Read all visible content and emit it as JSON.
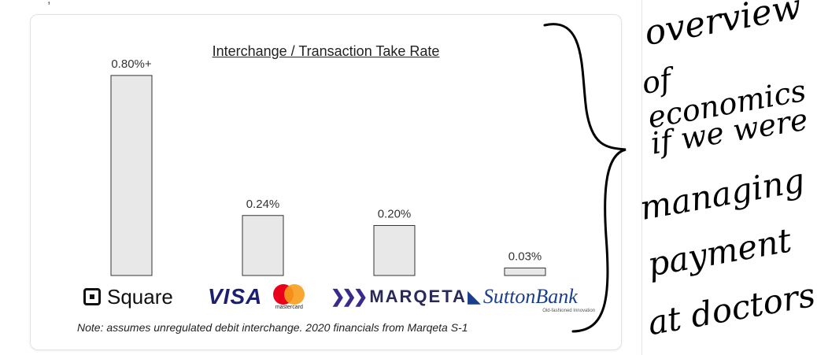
{
  "top_fragment": ",",
  "chart_data": {
    "type": "bar",
    "title": "Interchange / Transaction Take Rate",
    "categories": [
      "Square",
      "Visa / Mastercard",
      "Marqeta",
      "Sutton Bank"
    ],
    "values": [
      0.8,
      0.24,
      0.2,
      0.03
    ],
    "data_labels": [
      "0.80%+",
      "0.24%",
      "0.20%",
      "0.03%"
    ],
    "ylim": [
      0,
      0.85
    ],
    "grid": false,
    "bar_color": "#e8e8e8",
    "bar_stroke": "#333333"
  },
  "logos": {
    "square": "Square",
    "visa": "VISA",
    "mastercard": "mastercard",
    "marqeta": "MARQETA",
    "sutton": "SuttonBank",
    "sutton_sub": "Old-fashioned Innovation"
  },
  "note": "Note: assumes unregulated debit interchange. 2020 financials from Marqeta S-1",
  "handwriting": {
    "lines": [
      "overview",
      "of economics",
      "if we were",
      "managing",
      "payment",
      "at doctors"
    ]
  }
}
